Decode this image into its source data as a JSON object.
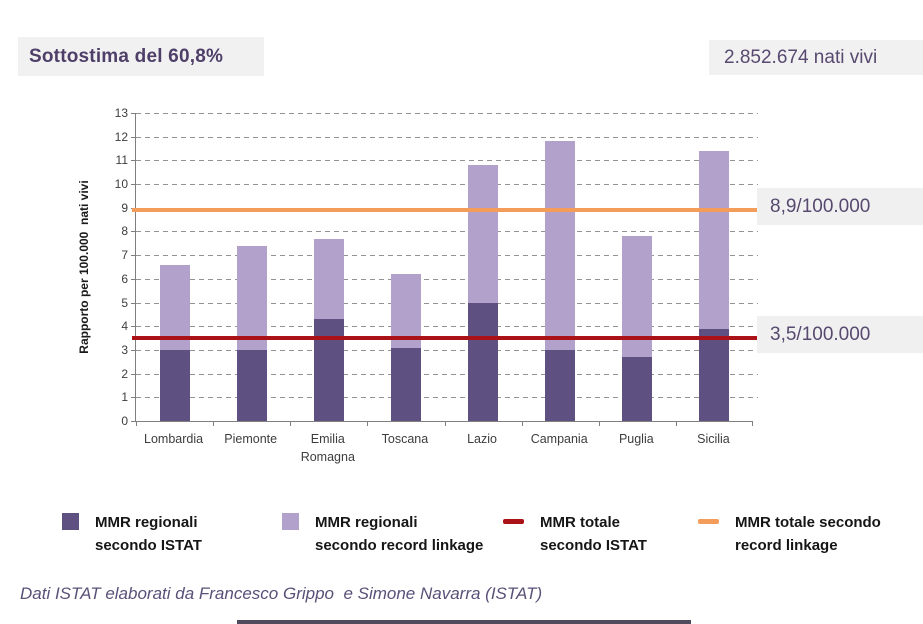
{
  "header": {
    "left_badge": "Sottostima del 60,8%",
    "right_badge": "2.852.674 nati vivi"
  },
  "chart_data": {
    "type": "bar",
    "title": "",
    "xlabel": "",
    "ylabel": "Rapporto per 100.000  nati vivi",
    "ylim": [
      0,
      13
    ],
    "ytick_step": 1,
    "grid": "horizontal-dashed",
    "legend_position": "bottom",
    "categories": [
      "Lombardia",
      "Piemonte",
      "Emilia Romagna",
      "Toscana",
      "Lazio",
      "Campania",
      "Puglia",
      "Sicilia"
    ],
    "series": [
      {
        "name": "MMR regionali secondo ISTAT",
        "color": "#5e5080",
        "values": [
          3.0,
          3.0,
          4.3,
          3.1,
          5.0,
          3.0,
          2.7,
          3.9
        ]
      },
      {
        "name": "MMR regionali secondo record linkage",
        "color": "#b2a2cb",
        "values": [
          6.6,
          7.4,
          7.7,
          6.2,
          10.8,
          11.8,
          7.8,
          11.4
        ]
      }
    ],
    "reference_lines": [
      {
        "name": "MMR totale secondo ISTAT",
        "value": 3.5,
        "color": "#aa1217",
        "label": "3,5/100.000"
      },
      {
        "name": "MMR totale secondo record linkage",
        "value": 8.9,
        "color": "#f49c5a",
        "label": "8,9/100.000"
      }
    ]
  },
  "legend": {
    "items": [
      {
        "type": "square",
        "color": "#5e5080",
        "line1": "MMR regionali",
        "line2": "secondo ISTAT"
      },
      {
        "type": "square",
        "color": "#b2a2cb",
        "line1": "MMR regionali",
        "line2": "secondo record linkage"
      },
      {
        "type": "dash",
        "color": "#aa1217",
        "line1": "MMR totale",
        "line2": "secondo ISTAT"
      },
      {
        "type": "dash",
        "color": "#f49c5a",
        "line1": "MMR totale secondo",
        "line2": "record linkage"
      }
    ]
  },
  "footer": {
    "credit": "Dati ISTAT elaborati da Francesco Grippo  e Simone Navarra (ISTAT)"
  }
}
